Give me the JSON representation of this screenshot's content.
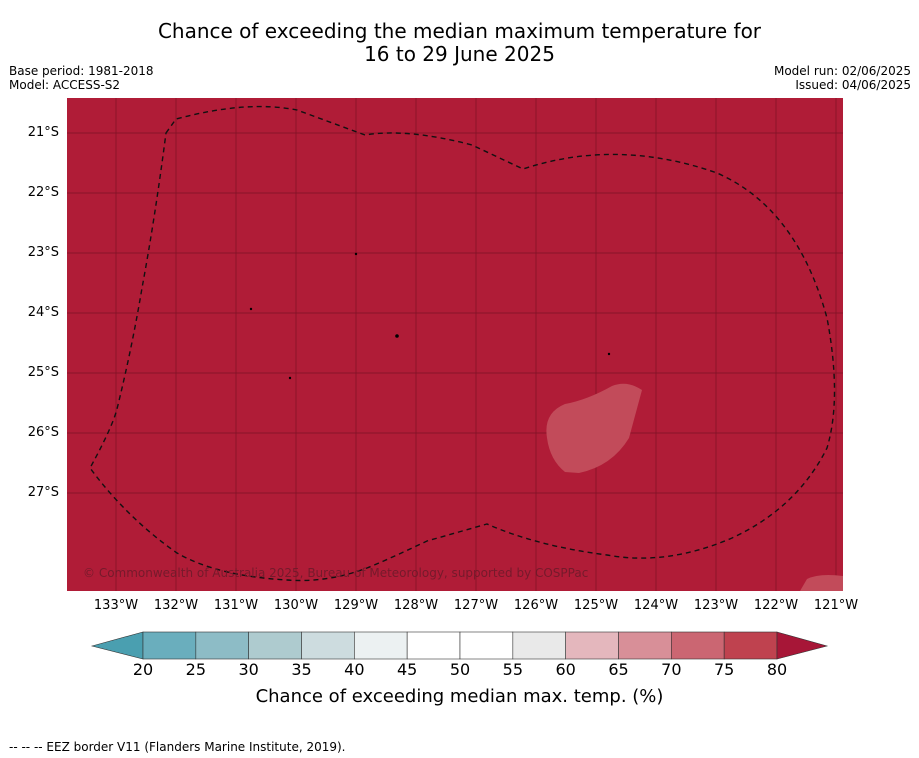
{
  "header": {
    "title_line1": "Chance of exceeding the median maximum temperature for",
    "title_line2": "16 to 29 June 2025",
    "base_period": "Base period: 1981-2018",
    "model": "Model: ACCESS-S2",
    "model_run": "Model run: 02/06/2025",
    "issued": "Issued: 04/06/2025"
  },
  "map": {
    "background_color": "#b01c37",
    "lower_class_color": "#c24b5a",
    "copyright": "© Commonwealth of Australia 2025, Bureau of Meteorology, supported by COSPPac",
    "lat_labels": [
      "21°S",
      "22°S",
      "23°S",
      "24°S",
      "25°S",
      "26°S",
      "27°S"
    ],
    "lon_labels": [
      "133°W",
      "132°W",
      "131°W",
      "130°W",
      "129°W",
      "128°W",
      "127°W",
      "126°W",
      "125°W",
      "124°W",
      "123°W",
      "122°W",
      "121°W"
    ]
  },
  "colorbar": {
    "ticks": [
      "20",
      "25",
      "30",
      "35",
      "40",
      "45",
      "50",
      "55",
      "60",
      "65",
      "70",
      "75",
      "80"
    ],
    "colors": [
      "#6aaebd",
      "#8dbcc6",
      "#aecbcf",
      "#cddcdf",
      "#ecf1f2",
      "#ffffff",
      "#ffffff",
      "#e9e9e9",
      "#e4b7bd",
      "#d88f98",
      "#cb6672",
      "#bf424f"
    ],
    "low_extend_color": "#4a9fb0",
    "high_extend_color": "#a71637",
    "label": "Chance of exceeding median max. temp. (%)"
  },
  "footnote": "-- -- -- EEZ border V11 (Flanders Marine Institute, 2019)."
}
